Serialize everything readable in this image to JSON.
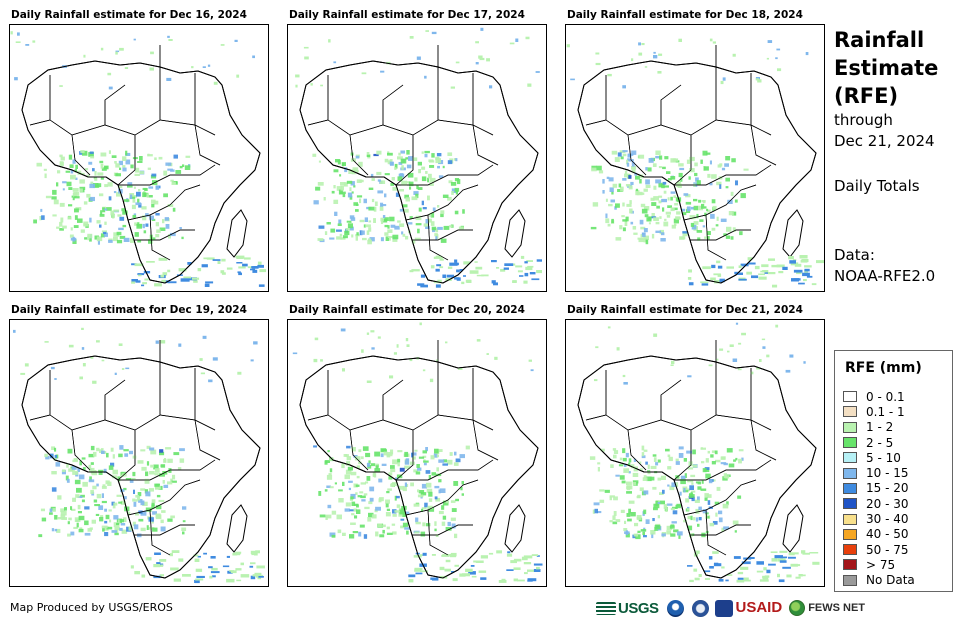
{
  "panels": [
    {
      "title": "Daily Rainfall estimate for Dec 16, 2024",
      "seed": 3
    },
    {
      "title": "Daily Rainfall estimate for Dec 17, 2024",
      "seed": 11
    },
    {
      "title": "Daily Rainfall estimate for Dec 18, 2024",
      "seed": 23
    },
    {
      "title": "Daily Rainfall estimate for Dec 19, 2024",
      "seed": 37
    },
    {
      "title": "Daily Rainfall estimate for Dec 20, 2024",
      "seed": 51
    },
    {
      "title": "Daily Rainfall estimate for Dec 21, 2024",
      "seed": 67
    }
  ],
  "sidebar": {
    "title_line1": "Rainfall",
    "title_line2": "Estimate",
    "title_line3": "(RFE)",
    "through_label": "through",
    "through_date": "Dec 21, 2024",
    "totals_label": "Daily Totals",
    "data_label": "Data:",
    "data_source": "NOAA-RFE2.0"
  },
  "legend": {
    "title": "RFE (mm)",
    "items": [
      {
        "label": "0 - 0.1",
        "color": "#ffffff"
      },
      {
        "label": "0.1 - 1",
        "color": "#f3dfc3"
      },
      {
        "label": "1 - 2",
        "color": "#b9f2b0"
      },
      {
        "label": "2 - 5",
        "color": "#67e36a"
      },
      {
        "label": "5 - 10",
        "color": "#b6f0f5"
      },
      {
        "label": "10 - 15",
        "color": "#7fb7ec"
      },
      {
        "label": "15 - 20",
        "color": "#3f8be0"
      },
      {
        "label": "20 - 30",
        "color": "#1f54c6"
      },
      {
        "label": "30 - 40",
        "color": "#f8e08c"
      },
      {
        "label": "40 - 50",
        "color": "#f5a623"
      },
      {
        "label": "50 - 75",
        "color": "#e8400c"
      },
      {
        "label": "> 75",
        "color": "#a3151a"
      },
      {
        "label": "No Data",
        "color": "#9a9a9a"
      }
    ]
  },
  "footer": {
    "credit": "Map Produced by USGS/EROS",
    "logo_usgs": "USGS",
    "logo_usaid": "USAID",
    "logo_fews": "FEWS NET"
  }
}
